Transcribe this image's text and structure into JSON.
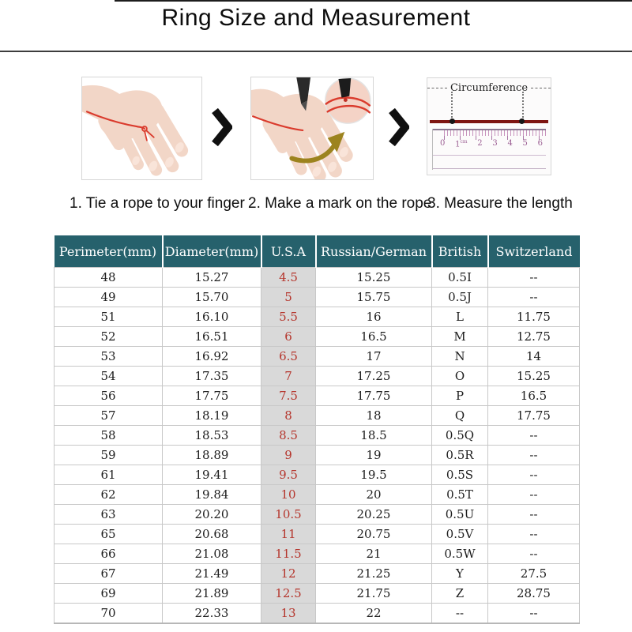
{
  "title": "Ring Size and Measurement",
  "steps": {
    "captions": [
      "1. Tie a rope to your finger",
      "2. Make a mark on the rope",
      "3. Measure the length"
    ]
  },
  "measure_figure": {
    "circumference_label": "Circumference",
    "ruler_numbers": [
      "0",
      "1",
      "2",
      "3",
      "4",
      "5",
      "6"
    ],
    "ruler_unit": "cm"
  },
  "table": {
    "headers": [
      "Perimeter(mm)",
      "Diameter(mm)",
      "U.S.A",
      "Russian/German",
      "British",
      "Switzerland"
    ],
    "rows": [
      [
        "48",
        "15.27",
        "4.5",
        "15.25",
        "0.5I",
        "--"
      ],
      [
        "49",
        "15.70",
        "5",
        "15.75",
        "0.5J",
        "--"
      ],
      [
        "51",
        "16.10",
        "5.5",
        "16",
        "L",
        "11.75"
      ],
      [
        "52",
        "16.51",
        "6",
        "16.5",
        "M",
        "12.75"
      ],
      [
        "53",
        "16.92",
        "6.5",
        "17",
        "N",
        "14"
      ],
      [
        "54",
        "17.35",
        "7",
        "17.25",
        "O",
        "15.25"
      ],
      [
        "56",
        "17.75",
        "7.5",
        "17.75",
        "P",
        "16.5"
      ],
      [
        "57",
        "18.19",
        "8",
        "18",
        "Q",
        "17.75"
      ],
      [
        "58",
        "18.53",
        "8.5",
        "18.5",
        "0.5Q",
        "--"
      ],
      [
        "59",
        "18.89",
        "9",
        "19",
        "0.5R",
        "--"
      ],
      [
        "61",
        "19.41",
        "9.5",
        "19.5",
        "0.5S",
        "--"
      ],
      [
        "62",
        "19.84",
        "10",
        "20",
        "0.5T",
        "--"
      ],
      [
        "63",
        "20.20",
        "10.5",
        "20.25",
        "0.5U",
        "--"
      ],
      [
        "65",
        "20.68",
        "11",
        "20.75",
        "0.5V",
        "--"
      ],
      [
        "66",
        "21.08",
        "11.5",
        "21",
        "0.5W",
        "--"
      ],
      [
        "67",
        "21.49",
        "12",
        "21.25",
        "Y",
        "27.5"
      ],
      [
        "69",
        "21.89",
        "12.5",
        "21.75",
        "Z",
        "28.75"
      ],
      [
        "70",
        "22.33",
        "13",
        "22",
        "--",
        "--"
      ]
    ]
  },
  "colors": {
    "header_bg": "#26616c",
    "header_text": "#ffffff",
    "usa_col_bg": "#d9d9d9",
    "usa_col_text": "#b5352c",
    "string_red": "#da3b2d",
    "rope_dark_red": "#7e1511",
    "arrow_olive": "#9c831e",
    "skin": "#f2d6c7"
  }
}
